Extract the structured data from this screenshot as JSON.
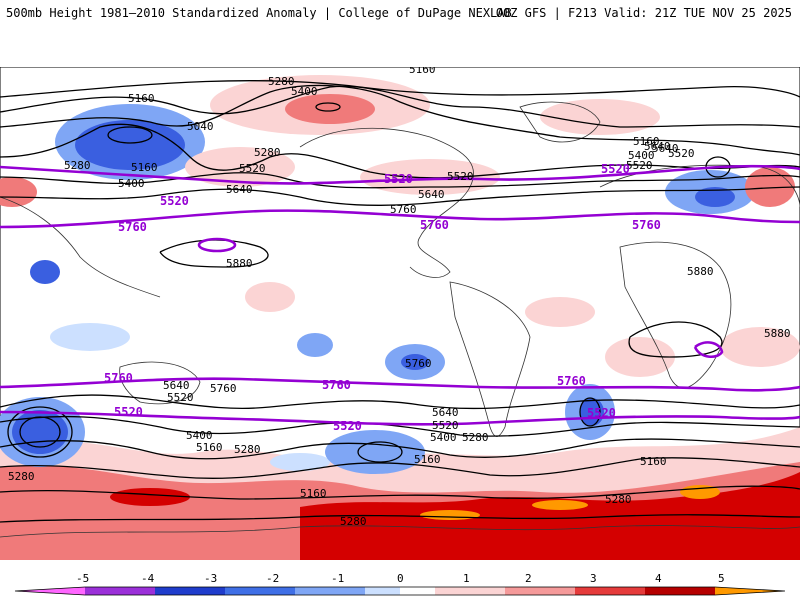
{
  "header": {
    "left_title": "500mb Height 1981–2010 Standardized Anomaly | College of DuPage NEXLAB",
    "right_title": "00Z GFS | F213 Valid: 21Z TUE NOV 25 2025"
  },
  "map": {
    "black_contour_labels": [
      "5160",
      "5280",
      "5400",
      "5040",
      "5160",
      "5280",
      "5520",
      "5640",
      "5160",
      "5280",
      "5400",
      "5640",
      "5760",
      "5880",
      "5520",
      "5640",
      "5520",
      "5160",
      "5400",
      "5520",
      "5640",
      "5880",
      "5880",
      "5640",
      "5520",
      "5760",
      "5760",
      "5640",
      "5520",
      "5400",
      "5280",
      "5160",
      "5400",
      "5160",
      "5280",
      "5160",
      "5280",
      "5280",
      "5280",
      "5160"
    ],
    "purple_contour_labels": [
      "5520",
      "5760",
      "5520",
      "5760",
      "5520",
      "5760",
      "5760",
      "5760",
      "5520",
      "5520",
      "5520",
      "5760"
    ],
    "colors": {
      "purple": "#9400d3",
      "strong_negative": "#3a5fe0",
      "moderate_negative": "#7fa6f5",
      "weak_negative": "#cce0ff",
      "weak_positive": "#fbd4d4",
      "moderate_positive": "#f07a7a",
      "strong_positive": "#d40000",
      "extreme_positive": "#ff9900"
    }
  },
  "colorbar": {
    "ticks": [
      "-5",
      "-4",
      "-3",
      "-2",
      "-1",
      "0",
      "1",
      "2",
      "3",
      "4",
      "5"
    ],
    "colors": [
      "#ff66ff",
      "#9b30d9",
      "#1f3ccc",
      "#3f6fe6",
      "#7fa6f5",
      "#cce0ff",
      "#ffffff",
      "#fbd4d4",
      "#f59a9a",
      "#e53b3b",
      "#b50000",
      "#ff9900"
    ]
  }
}
